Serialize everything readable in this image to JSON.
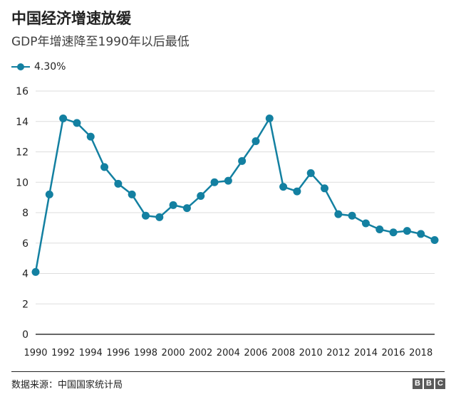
{
  "header": {
    "title": "中国经济增速放缓",
    "subtitle": "GDP年增速降至1990年以后最低"
  },
  "legend": {
    "label": "4.30%"
  },
  "footer": {
    "source": "数据来源：中国国家统计局",
    "logo": [
      "B",
      "B",
      "C"
    ]
  },
  "colors": {
    "series": "#1380a1",
    "grid": "#dddddd",
    "axis": "#333333"
  },
  "chart_data": {
    "type": "line",
    "title": "中国经济增速放缓",
    "subtitle": "GDP年增速降至1990年以后最低",
    "xlabel": "",
    "ylabel": "",
    "ylim": [
      0,
      16
    ],
    "yticks": [
      0,
      2,
      4,
      6,
      8,
      10,
      12,
      14,
      16
    ],
    "xlim": [
      1990,
      2019
    ],
    "xtick_labels": [
      "1990",
      "1992",
      "1994",
      "1996",
      "1998",
      "2000",
      "2002",
      "2004",
      "2006",
      "2008",
      "2010",
      "2012",
      "2014",
      "2016",
      "2018"
    ],
    "grid": "horizontal",
    "legend_position": "top-left",
    "series": [
      {
        "name": "4.30%",
        "color": "#1380a1",
        "x": [
          1990,
          1991,
          1992,
          1993,
          1994,
          1995,
          1996,
          1997,
          1998,
          1999,
          2000,
          2001,
          2002,
          2003,
          2004,
          2005,
          2006,
          2007,
          2008,
          2009,
          2010,
          2011,
          2012,
          2013,
          2014,
          2015,
          2016,
          2017,
          2018,
          2019
        ],
        "values": [
          4.1,
          9.2,
          14.2,
          13.9,
          13.0,
          11.0,
          9.9,
          9.2,
          7.8,
          7.7,
          8.5,
          8.3,
          9.1,
          10.0,
          10.1,
          11.4,
          12.7,
          14.2,
          9.7,
          9.4,
          10.6,
          9.6,
          7.9,
          7.8,
          7.3,
          6.9,
          6.7,
          6.8,
          6.6,
          6.2
        ]
      }
    ]
  }
}
